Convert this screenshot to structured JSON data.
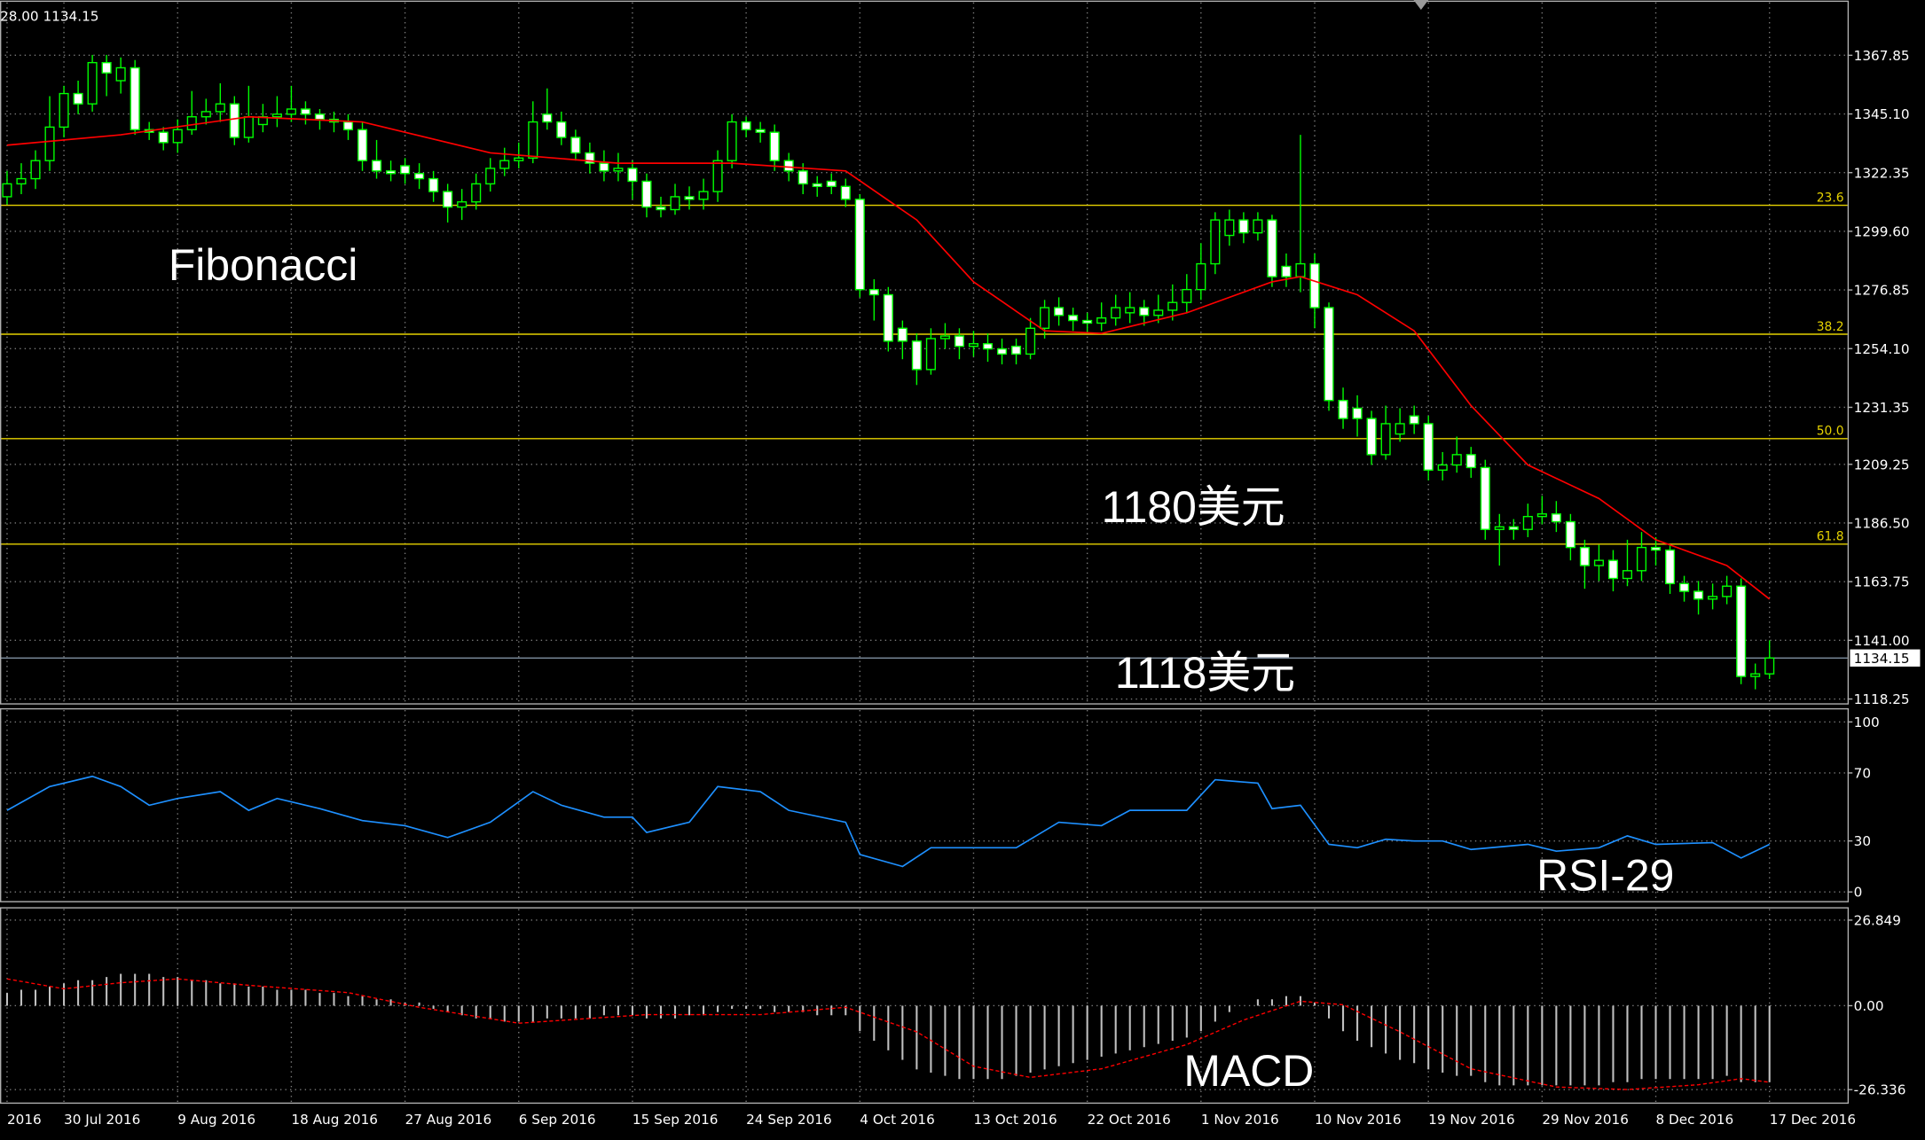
{
  "chart_data": [
    {
      "type": "candlestick",
      "info_text": "28.00 1134.15",
      "annotations": [
        "Fibonacci",
        "1180美元",
        "1118美元"
      ],
      "categories": [
        "2016",
        null,
        null,
        null,
        "30 Jul 2016",
        null,
        null,
        null,
        null,
        null,
        null,
        null,
        "9 Aug 2016",
        null,
        null,
        null,
        null,
        null,
        null,
        null,
        "18 Aug 2016",
        null,
        null,
        null,
        null,
        null,
        null,
        null,
        "27 Aug 2016",
        null,
        null,
        null,
        null,
        null,
        null,
        null,
        "6 Sep 2016",
        null,
        null,
        null,
        null,
        null,
        null,
        null,
        "15 Sep 2016",
        null,
        null,
        null,
        null,
        null,
        null,
        null,
        "24 Sep 2016",
        null,
        null,
        null,
        null,
        null,
        null,
        null,
        "4 Oct 2016",
        null,
        null,
        null,
        null,
        null,
        null,
        null,
        "13 Oct 2016",
        null,
        null,
        null,
        null,
        null,
        null,
        null,
        "22 Oct 2016",
        null,
        null,
        null,
        null,
        null,
        null,
        null,
        "1 Nov 2016",
        null,
        null,
        null,
        null,
        null,
        null,
        null,
        "10 Nov 2016",
        null,
        null,
        null,
        null,
        null,
        null,
        null,
        "19 Nov 2016",
        null,
        null,
        null,
        null,
        null,
        null,
        null,
        "29 Nov 2016",
        null,
        null,
        null,
        null,
        null,
        null,
        null,
        "8 Dec 2016",
        null,
        null,
        null,
        null,
        null,
        null,
        null,
        "17 Dec 2016"
      ],
      "open": [
        1313,
        1318,
        1320,
        1327,
        1340,
        1353,
        1349,
        1365,
        1358,
        1363,
        1339,
        1338,
        1334,
        1339,
        1344,
        1346,
        1349,
        1336,
        1341,
        1344,
        1345,
        1347,
        1345,
        1343,
        1342,
        1339,
        1327,
        1323,
        1325,
        1322,
        1320,
        1315,
        1309,
        1311,
        1318,
        1324,
        1327,
        1328,
        1345,
        1342,
        1336,
        1330,
        1326,
        1323,
        1324,
        1319,
        1309,
        1308,
        1313,
        1312,
        1315,
        1327,
        1342,
        1339,
        1338,
        1327,
        1323,
        1318,
        1319,
        1317,
        1312,
        1277,
        1275,
        1262,
        1257,
        1246,
        1258,
        1259,
        1255,
        1256,
        1254,
        1255,
        1252,
        1262,
        1270,
        1267,
        1265,
        1264,
        1266,
        1268,
        1270,
        1267,
        1269,
        1272,
        1277,
        1287,
        1298,
        1304,
        1299,
        1304,
        1286,
        1282,
        1287,
        1270,
        1234,
        1231,
        1227,
        1213,
        1221,
        1228,
        1225,
        1207,
        1209,
        1213,
        1208,
        1184,
        1185,
        1184,
        1189,
        1190,
        1187,
        1177,
        1170,
        1172,
        1165,
        1168,
        1177,
        1176,
        1163,
        1160,
        1157,
        1158,
        1162,
        1127,
        1128
      ],
      "high": [
        1323,
        1326,
        1331,
        1352,
        1356,
        1358,
        1368,
        1368,
        1367,
        1366,
        1342,
        1340,
        1343,
        1354,
        1351,
        1357,
        1352,
        1356,
        1349,
        1352,
        1356,
        1350,
        1347,
        1346,
        1345,
        1342,
        1335,
        1327,
        1328,
        1326,
        1323,
        1318,
        1316,
        1322,
        1328,
        1332,
        1334,
        1350,
        1355,
        1346,
        1339,
        1334,
        1331,
        1330,
        1327,
        1322,
        1313,
        1318,
        1317,
        1320,
        1331,
        1345,
        1344,
        1342,
        1341,
        1330,
        1326,
        1321,
        1322,
        1320,
        1314,
        1281,
        1278,
        1265,
        1260,
        1262,
        1264,
        1262,
        1261,
        1260,
        1258,
        1258,
        1266,
        1273,
        1274,
        1270,
        1268,
        1272,
        1275,
        1276,
        1273,
        1275,
        1279,
        1283,
        1295,
        1307,
        1308,
        1307,
        1307,
        1306,
        1291,
        1337,
        1291,
        1272,
        1239,
        1236,
        1230,
        1232,
        1231,
        1232,
        1228,
        1214,
        1220,
        1216,
        1211,
        1190,
        1188,
        1194,
        1197,
        1195,
        1190,
        1180,
        1178,
        1176,
        1180,
        1183,
        1181,
        1178,
        1166,
        1164,
        1163,
        1166,
        1165,
        1132,
        1141
      ],
      "low": [
        1310,
        1314,
        1316,
        1323,
        1336,
        1345,
        1346,
        1352,
        1353,
        1337,
        1335,
        1331,
        1330,
        1337,
        1341,
        1342,
        1333,
        1334,
        1338,
        1340,
        1342,
        1341,
        1339,
        1338,
        1335,
        1323,
        1320,
        1319,
        1318,
        1316,
        1311,
        1303,
        1304,
        1308,
        1315,
        1321,
        1324,
        1326,
        1339,
        1333,
        1327,
        1322,
        1319,
        1319,
        1312,
        1305,
        1305,
        1306,
        1308,
        1308,
        1311,
        1324,
        1336,
        1334,
        1323,
        1319,
        1314,
        1313,
        1314,
        1309,
        1274,
        1265,
        1253,
        1250,
        1240,
        1244,
        1254,
        1250,
        1251,
        1249,
        1248,
        1248,
        1250,
        1258,
        1263,
        1261,
        1260,
        1261,
        1263,
        1264,
        1263,
        1264,
        1265,
        1268,
        1273,
        1283,
        1294,
        1295,
        1296,
        1278,
        1278,
        1276,
        1262,
        1230,
        1223,
        1220,
        1209,
        1211,
        1218,
        1221,
        1203,
        1203,
        1206,
        1204,
        1180,
        1170,
        1180,
        1181,
        1186,
        1183,
        1172,
        1161,
        1164,
        1160,
        1162,
        1164,
        1170,
        1159,
        1156,
        1151,
        1153,
        1155,
        1124,
        1122,
        1126
      ],
      "close": [
        1318,
        1320,
        1327,
        1340,
        1353,
        1349,
        1365,
        1361,
        1363,
        1339,
        1338,
        1334,
        1339,
        1344,
        1346,
        1349,
        1336,
        1344,
        1344,
        1345,
        1347,
        1345,
        1343,
        1342,
        1339,
        1327,
        1323,
        1322,
        1322,
        1320,
        1315,
        1309,
        1311,
        1318,
        1324,
        1327,
        1328,
        1342,
        1342,
        1336,
        1330,
        1326,
        1323,
        1324,
        1319,
        1309,
        1308,
        1313,
        1312,
        1315,
        1327,
        1342,
        1339,
        1338,
        1327,
        1323,
        1318,
        1317,
        1317,
        1312,
        1277,
        1275,
        1257,
        1257,
        1246,
        1258,
        1259,
        1255,
        1256,
        1254,
        1252,
        1252,
        1262,
        1270,
        1267,
        1265,
        1264,
        1266,
        1270,
        1270,
        1267,
        1269,
        1272,
        1277,
        1287,
        1304,
        1304,
        1299,
        1304,
        1282,
        1282,
        1287,
        1270,
        1234,
        1227,
        1227,
        1213,
        1225,
        1225,
        1225,
        1207,
        1209,
        1213,
        1208,
        1184,
        1185,
        1184,
        1189,
        1190,
        1187,
        1177,
        1170,
        1172,
        1165,
        1168,
        1177,
        1176,
        1163,
        1160,
        1157,
        1158,
        1162,
        1127,
        1128,
        1134.15
      ],
      "up_color": "#000000",
      "down_color": "#ffffff",
      "wick_color": "#00ff00",
      "ma": {
        "color": "#ff0000",
        "x": [
          0,
          8,
          17,
          25,
          34,
          43,
          51,
          59,
          64,
          68,
          73,
          77,
          83,
          89,
          91,
          95,
          99,
          103,
          107,
          112,
          116,
          121,
          124
        ],
        "values": [
          1333,
          1337,
          1344,
          1342,
          1330,
          1326,
          1326,
          1323,
          1304,
          1280,
          1261,
          1260,
          1268,
          1280,
          1282,
          1275,
          1261,
          1232,
          1209,
          1196,
          1180,
          1170,
          1157
        ]
      },
      "fib_levels": [
        {
          "value": 1309.7,
          "label": "23.6"
        },
        {
          "value": 1259.7,
          "label": "38.2"
        },
        {
          "value": 1219.2,
          "label": "50.0"
        },
        {
          "value": 1178.3,
          "label": "61.8"
        }
      ],
      "fib_color": "#e6d200",
      "last_price": 1134.15,
      "last_price_color": "#7f8fa0",
      "ylim": [
        1116.35,
        1388.33
      ],
      "yticks": [
        1367.85,
        {
          "value": 1345.1,
          "label": "1345.10"
        },
        1322.35,
        {
          "value": 1299.6,
          "label": "1299.60"
        },
        1276.85,
        {
          "value": 1254.1,
          "label": "1254.10"
        },
        1231.35,
        1209.25,
        {
          "value": 1186.5,
          "label": "1186.50"
        },
        1163.75,
        {
          "value": 1141,
          "label": "1141.00"
        },
        1118.25
      ],
      "grid": true
    },
    {
      "type": "line",
      "label": "RSI-29",
      "color": "#1e90ff",
      "x": [
        0,
        3,
        6,
        8,
        10,
        12,
        15,
        17,
        19,
        22,
        25,
        28,
        31,
        34,
        37,
        39,
        42,
        44,
        45,
        48,
        50,
        53,
        55,
        59,
        60,
        63,
        65,
        69,
        71,
        74,
        77,
        79,
        83,
        85,
        88,
        89,
        91,
        93,
        95,
        97,
        99,
        101,
        103,
        107,
        109,
        112,
        114,
        116,
        120,
        122,
        124
      ],
      "values": [
        48,
        62,
        68,
        62,
        51,
        55,
        59,
        48,
        55,
        49,
        42,
        39,
        32,
        41,
        59,
        51,
        44,
        44,
        35,
        41,
        62,
        59,
        48,
        41,
        22,
        15,
        26,
        26,
        26,
        41,
        39,
        48,
        48,
        66,
        64,
        49,
        51,
        28,
        26,
        31,
        30,
        30,
        25,
        28,
        24,
        26,
        33,
        28,
        29,
        20,
        28
      ],
      "ylim": [
        -5,
        107
      ],
      "yticks": [
        100,
        70,
        30,
        0
      ],
      "grid": true
    },
    {
      "type": "bar",
      "label": "MACD",
      "color": "#c0c0c0",
      "values": [
        4,
        5,
        5,
        6,
        7,
        8,
        8,
        9,
        10,
        10,
        10,
        9,
        9,
        8,
        8,
        7,
        7,
        6,
        6,
        5,
        5,
        5,
        4,
        4,
        3,
        3,
        2,
        2,
        1,
        1,
        -1,
        -2,
        -3,
        -4,
        -4,
        -5,
        -5,
        -5,
        -4,
        -4,
        -4,
        -4,
        -3,
        -3,
        -3,
        -4,
        -4,
        -4,
        -3,
        -3,
        -2,
        -1,
        -1,
        -1,
        -2,
        -2,
        -2,
        -3,
        -3,
        -3,
        -8,
        -11,
        -14,
        -17,
        -20,
        -21,
        -22,
        -23,
        -23,
        -23,
        -23,
        -22,
        -21,
        -20,
        -19,
        -18,
        -17,
        -16,
        -15,
        -14,
        -13,
        -12,
        -11,
        -10,
        -8,
        -5,
        -2,
        0,
        2,
        2,
        3,
        3,
        1,
        -4,
        -8,
        -11,
        -13,
        -15,
        -17,
        -18,
        -20,
        -21,
        -22,
        -22,
        -24,
        -25,
        -25,
        -25,
        -25,
        -25,
        -25,
        -25,
        -25,
        -24,
        -24,
        -23,
        -23,
        -23,
        -23,
        -23,
        -23,
        -22,
        -24,
        -24,
        -24
      ],
      "signal": {
        "color": "#ff0000",
        "x": [
          0,
          4,
          8,
          12,
          17,
          24,
          29,
          36,
          45,
          53,
          59,
          64,
          68,
          72,
          77,
          83,
          87,
          91,
          94,
          98,
          103,
          109,
          114,
          119,
          122,
          124
        ],
        "values": [
          8.4,
          5.3,
          7.2,
          8.4,
          6.4,
          4.1,
          -0.5,
          -5.5,
          -2.8,
          -2.8,
          -0.5,
          -8.2,
          -19,
          -22.5,
          -19.8,
          -12.2,
          -4.5,
          1.4,
          0.3,
          -8.2,
          -19.8,
          -25.5,
          -26.3,
          -24.8,
          -22.9,
          -24
        ]
      },
      "ylim": [
        -30.19,
        30.32
      ],
      "yticks": [
        26.849,
        {
          "value": 0,
          "label": "0.00"
        },
        -26.336
      ],
      "grid": true
    }
  ]
}
